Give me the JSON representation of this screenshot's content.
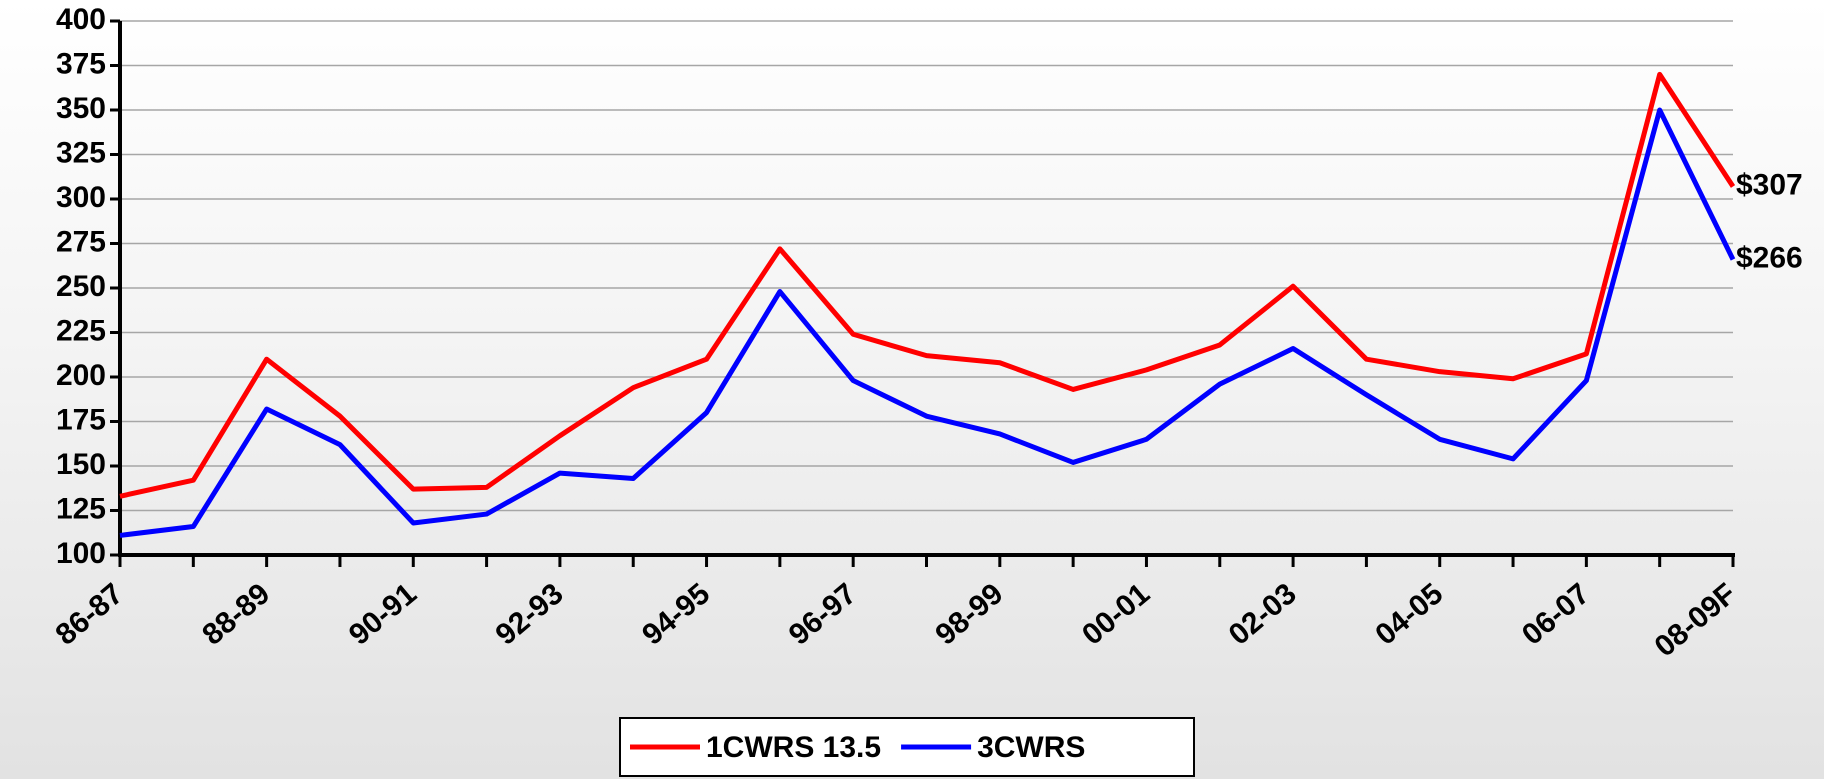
{
  "chart_data": {
    "type": "line",
    "categories": [
      "86-87",
      null,
      "88-89",
      null,
      "90-91",
      null,
      "92-93",
      null,
      "94-95",
      null,
      "96-97",
      null,
      "98-99",
      null,
      "00-01",
      null,
      "02-03",
      null,
      "04-05",
      null,
      "06-07",
      null,
      "08-09F"
    ],
    "series": [
      {
        "name": "1CWRS 13.5",
        "color": "#ff0000",
        "values": [
          133,
          142,
          210,
          178,
          137,
          138,
          167,
          194,
          210,
          272,
          224,
          212,
          208,
          193,
          204,
          218,
          251,
          210,
          203,
          199,
          213,
          370,
          307
        ],
        "value_labels": [
          null,
          null,
          null,
          null,
          null,
          null,
          null,
          null,
          null,
          null,
          null,
          null,
          null,
          null,
          null,
          null,
          null,
          null,
          null,
          null,
          null,
          null,
          "$307"
        ]
      },
      {
        "name": "3CWRS",
        "color": "#0000ff",
        "values": [
          111,
          116,
          182,
          162,
          118,
          123,
          146,
          143,
          180,
          248,
          198,
          178,
          168,
          152,
          165,
          196,
          216,
          190,
          165,
          154,
          198,
          350,
          266
        ],
        "value_labels": [
          null,
          null,
          null,
          null,
          null,
          null,
          null,
          null,
          null,
          null,
          null,
          null,
          null,
          null,
          null,
          null,
          null,
          null,
          null,
          null,
          null,
          null,
          "$266"
        ]
      }
    ],
    "ylim": [
      100,
      400
    ],
    "yticks": [
      100,
      125,
      150,
      175,
      200,
      225,
      250,
      275,
      300,
      325,
      350,
      375,
      400
    ],
    "grid": true,
    "legend": "bottom"
  }
}
